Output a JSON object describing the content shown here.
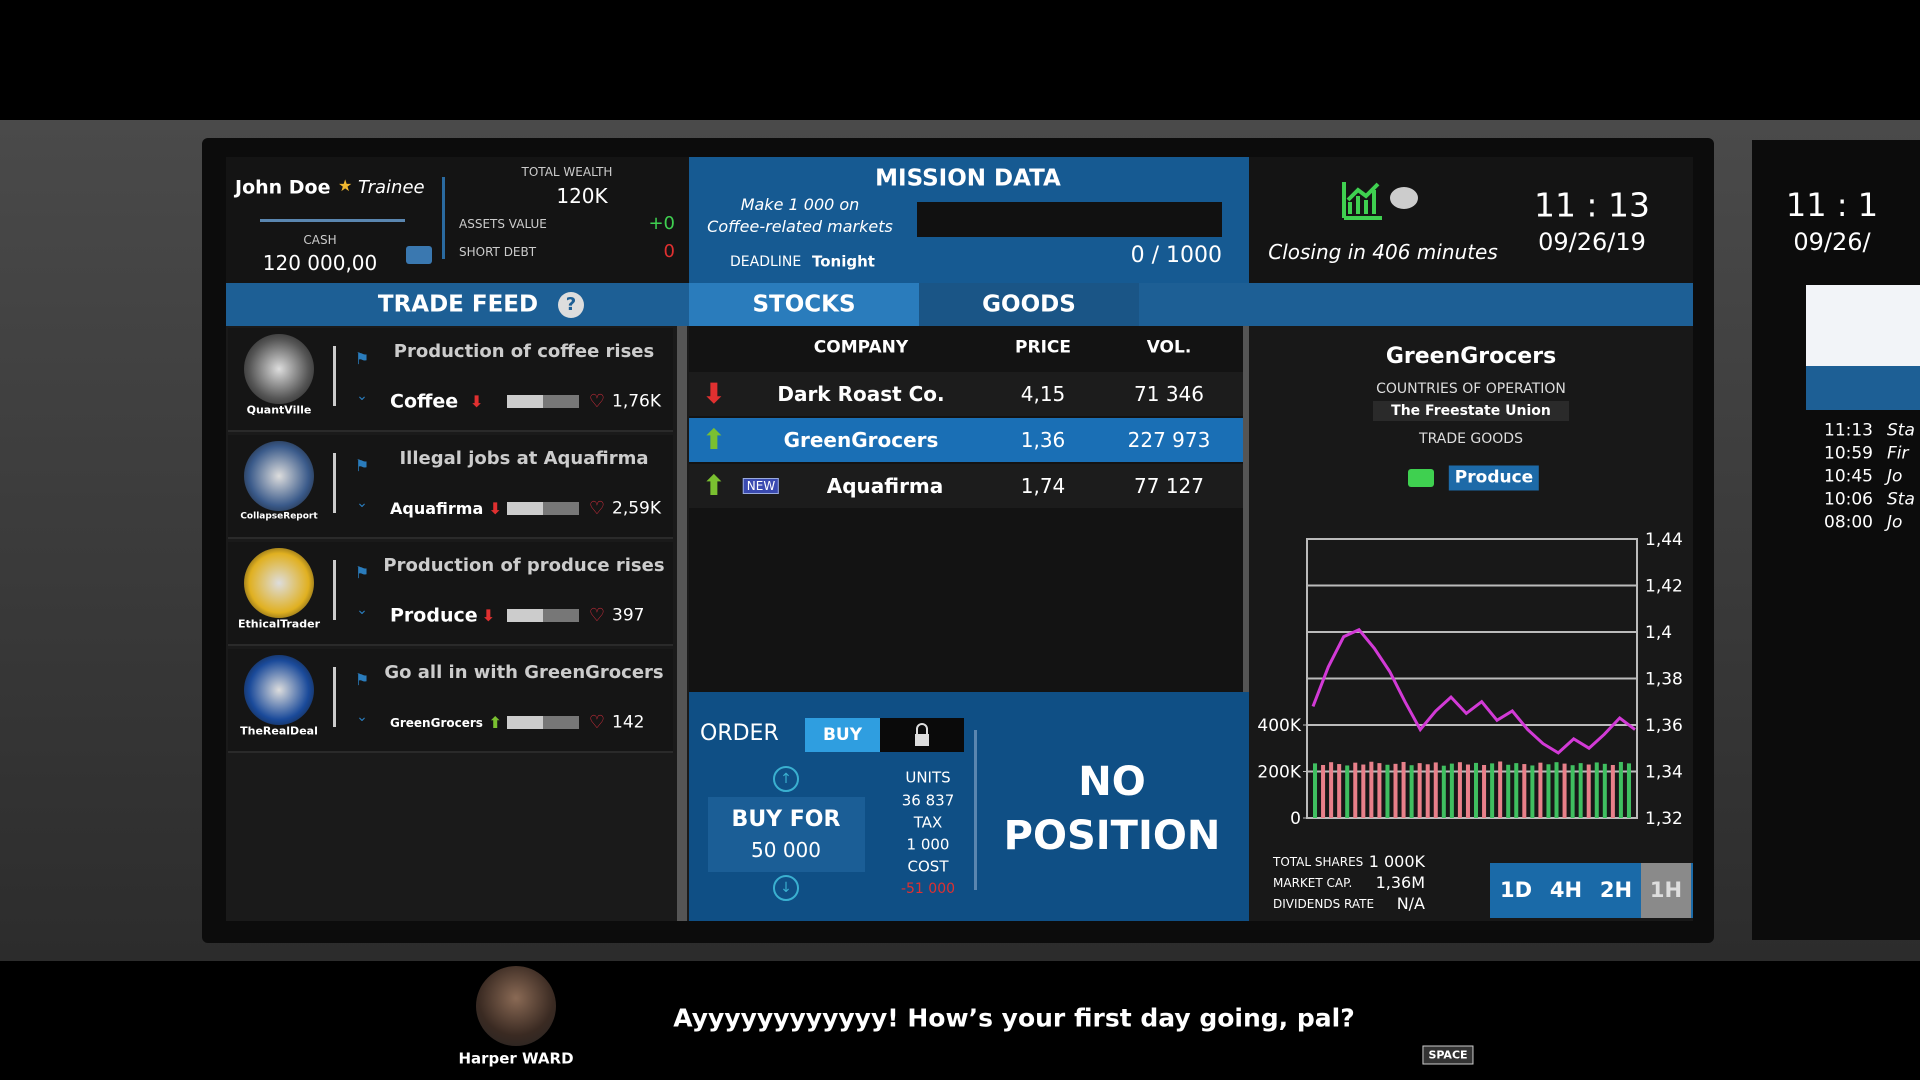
{
  "player": {
    "name": "John Doe",
    "rank": "Trainee",
    "cash_label": "CASH",
    "cash": "120 000,00",
    "total_wealth_label": "TOTAL WEALTH",
    "total_wealth": "120K",
    "assets_label": "ASSETS VALUE",
    "assets_value": "+0",
    "debt_label": "SHORT DEBT",
    "short_debt": "0"
  },
  "mission": {
    "title": "MISSION DATA",
    "description": [
      "Make 1 000 on",
      "Coffee-related markets"
    ],
    "deadline_label": "DEADLINE",
    "deadline": "Tonight",
    "progress": "0 / 1000"
  },
  "clock": {
    "closing": "Closing in 406 minutes",
    "time": "11 : 13",
    "date": "09/26/19"
  },
  "trade_feed": {
    "title": "TRADE FEED",
    "help": "?",
    "items": [
      {
        "source": "QuantVille",
        "headline": "Production of coffee rises",
        "market": "Coffee",
        "trend": "down",
        "likes": "1,76K"
      },
      {
        "source": "CollapseReport",
        "headline": "Illegal jobs at Aquafirma",
        "market": "Aquafirma",
        "trend": "down",
        "likes": "2,59K"
      },
      {
        "source": "EthicalTrader",
        "headline": "Production of produce rises",
        "market": "Produce",
        "trend": "down",
        "likes": "397"
      },
      {
        "source": "TheRealDeal",
        "headline": "Go all in with GreenGrocers",
        "market": "GreenGrocers",
        "trend": "up",
        "likes": "142"
      }
    ]
  },
  "tabs": [
    "STOCKS",
    "GOODS"
  ],
  "stocks": {
    "columns": [
      "COMPANY",
      "PRICE",
      "VOL."
    ],
    "selected_row": 1,
    "rows": [
      {
        "company": "Dark Roast Co.",
        "price": "4,15",
        "volume": "71 346",
        "trend": "down"
      },
      {
        "company": "GreenGrocers",
        "price": "1,36",
        "volume": "227 973",
        "trend": "up"
      },
      {
        "company": "Aquafirma",
        "price": "1,74",
        "volume": "77 127",
        "trend": "up",
        "badge": "NEW"
      }
    ]
  },
  "order": {
    "title": "ORDER",
    "mode": "BUY",
    "action": "BUY FOR",
    "amount": "50 000",
    "units_label": "UNITS",
    "units": "36 837",
    "tax_label": "TAX",
    "tax": "1 000",
    "cost_label": "COST",
    "cost": "-51 000",
    "position": [
      "NO",
      "POSITION"
    ]
  },
  "company": {
    "name": "GreenGrocers",
    "countries_label": "COUNTRIES OF OPERATION",
    "country": "The Freestate Union",
    "goods_label": "TRADE GOODS",
    "good": "Produce"
  },
  "chart": {
    "price": {
      "color": "#d23ad6",
      "ylim": [
        1.32,
        1.44
      ],
      "yticks": [
        {
          "value": 1.44,
          "label": "1,44"
        },
        {
          "value": 1.42,
          "label": "1,42"
        },
        {
          "value": 1.4,
          "label": "1,4"
        },
        {
          "value": 1.38,
          "label": "1,38"
        },
        {
          "value": 1.36,
          "label": "1,36"
        },
        {
          "value": 1.34,
          "label": "1,34"
        },
        {
          "value": 1.32,
          "label": "1,32"
        }
      ],
      "values": [
        1.368,
        1.385,
        1.398,
        1.401,
        1.393,
        1.383,
        1.37,
        1.358,
        1.366,
        1.372,
        1.365,
        1.37,
        1.362,
        1.366,
        1.358,
        1.352,
        1.348,
        1.354,
        1.35,
        1.356,
        1.363,
        1.358
      ]
    },
    "volume": {
      "ylim": [
        0,
        1200000
      ],
      "yticks": [
        0,
        {
          "value": 200000,
          "label": "200K"
        },
        {
          "value": 400000,
          "label": "400K"
        }
      ],
      "values": [
        235000,
        228000,
        240000,
        232000,
        226000,
        238000,
        230000,
        242000,
        236000,
        229000,
        233000,
        241000,
        227000,
        236000,
        231000,
        239000,
        225000,
        234000,
        240000,
        230000,
        237000,
        228000,
        235000,
        243000,
        229000,
        236000,
        232000,
        226000,
        238000,
        231000,
        240000,
        234000,
        227000,
        236000,
        230000,
        239000,
        233000,
        228000,
        241000,
        235000
      ],
      "colors": [
        "#3fbf60",
        "#e8808a",
        "#e8808a",
        "#e8808a",
        "#3fbf60",
        "#e8808a",
        "#e8808a",
        "#e8808a",
        "#e8808a",
        "#3fbf60",
        "#e8808a",
        "#e8808a",
        "#3fbf60",
        "#e8808a",
        "#e8808a",
        "#e8808a",
        "#3fbf60",
        "#3fbf60",
        "#e8808a",
        "#e8808a",
        "#3fbf60",
        "#e8808a",
        "#3fbf60",
        "#e8808a",
        "#3fbf60",
        "#3fbf60",
        "#e8808a",
        "#3fbf60",
        "#e8808a",
        "#3fbf60",
        "#3fbf60",
        "#e8808a",
        "#3fbf60",
        "#3fbf60",
        "#e8808a",
        "#3fbf60",
        "#3fbf60",
        "#e8808a",
        "#3fbf60",
        "#3fbf60"
      ]
    }
  },
  "stats": [
    {
      "label": "TOTAL SHARES",
      "value": "1 000K"
    },
    {
      "label": "MARKET CAP.",
      "value": "1,36M"
    },
    {
      "label": "DIVIDENDS RATE",
      "value": "N/A"
    }
  ],
  "timeframes": [
    "1D",
    "4H",
    "2H",
    "1H"
  ],
  "side_monitor": {
    "time": "11 : 1",
    "date": "09/26/",
    "feed": [
      {
        "time": "11:13",
        "text": "Sta"
      },
      {
        "time": "10:59",
        "text": "Fir"
      },
      {
        "time": "10:45",
        "text": "Jo"
      },
      {
        "time": "10:06",
        "text": "Sta"
      },
      {
        "time": "08:00",
        "text": "Jo"
      }
    ]
  },
  "dialog": {
    "speaker": "Harper WARD",
    "text": "Ayyyyyyyyyyyy! How’s your first day going, pal?",
    "key": "SPACE"
  }
}
